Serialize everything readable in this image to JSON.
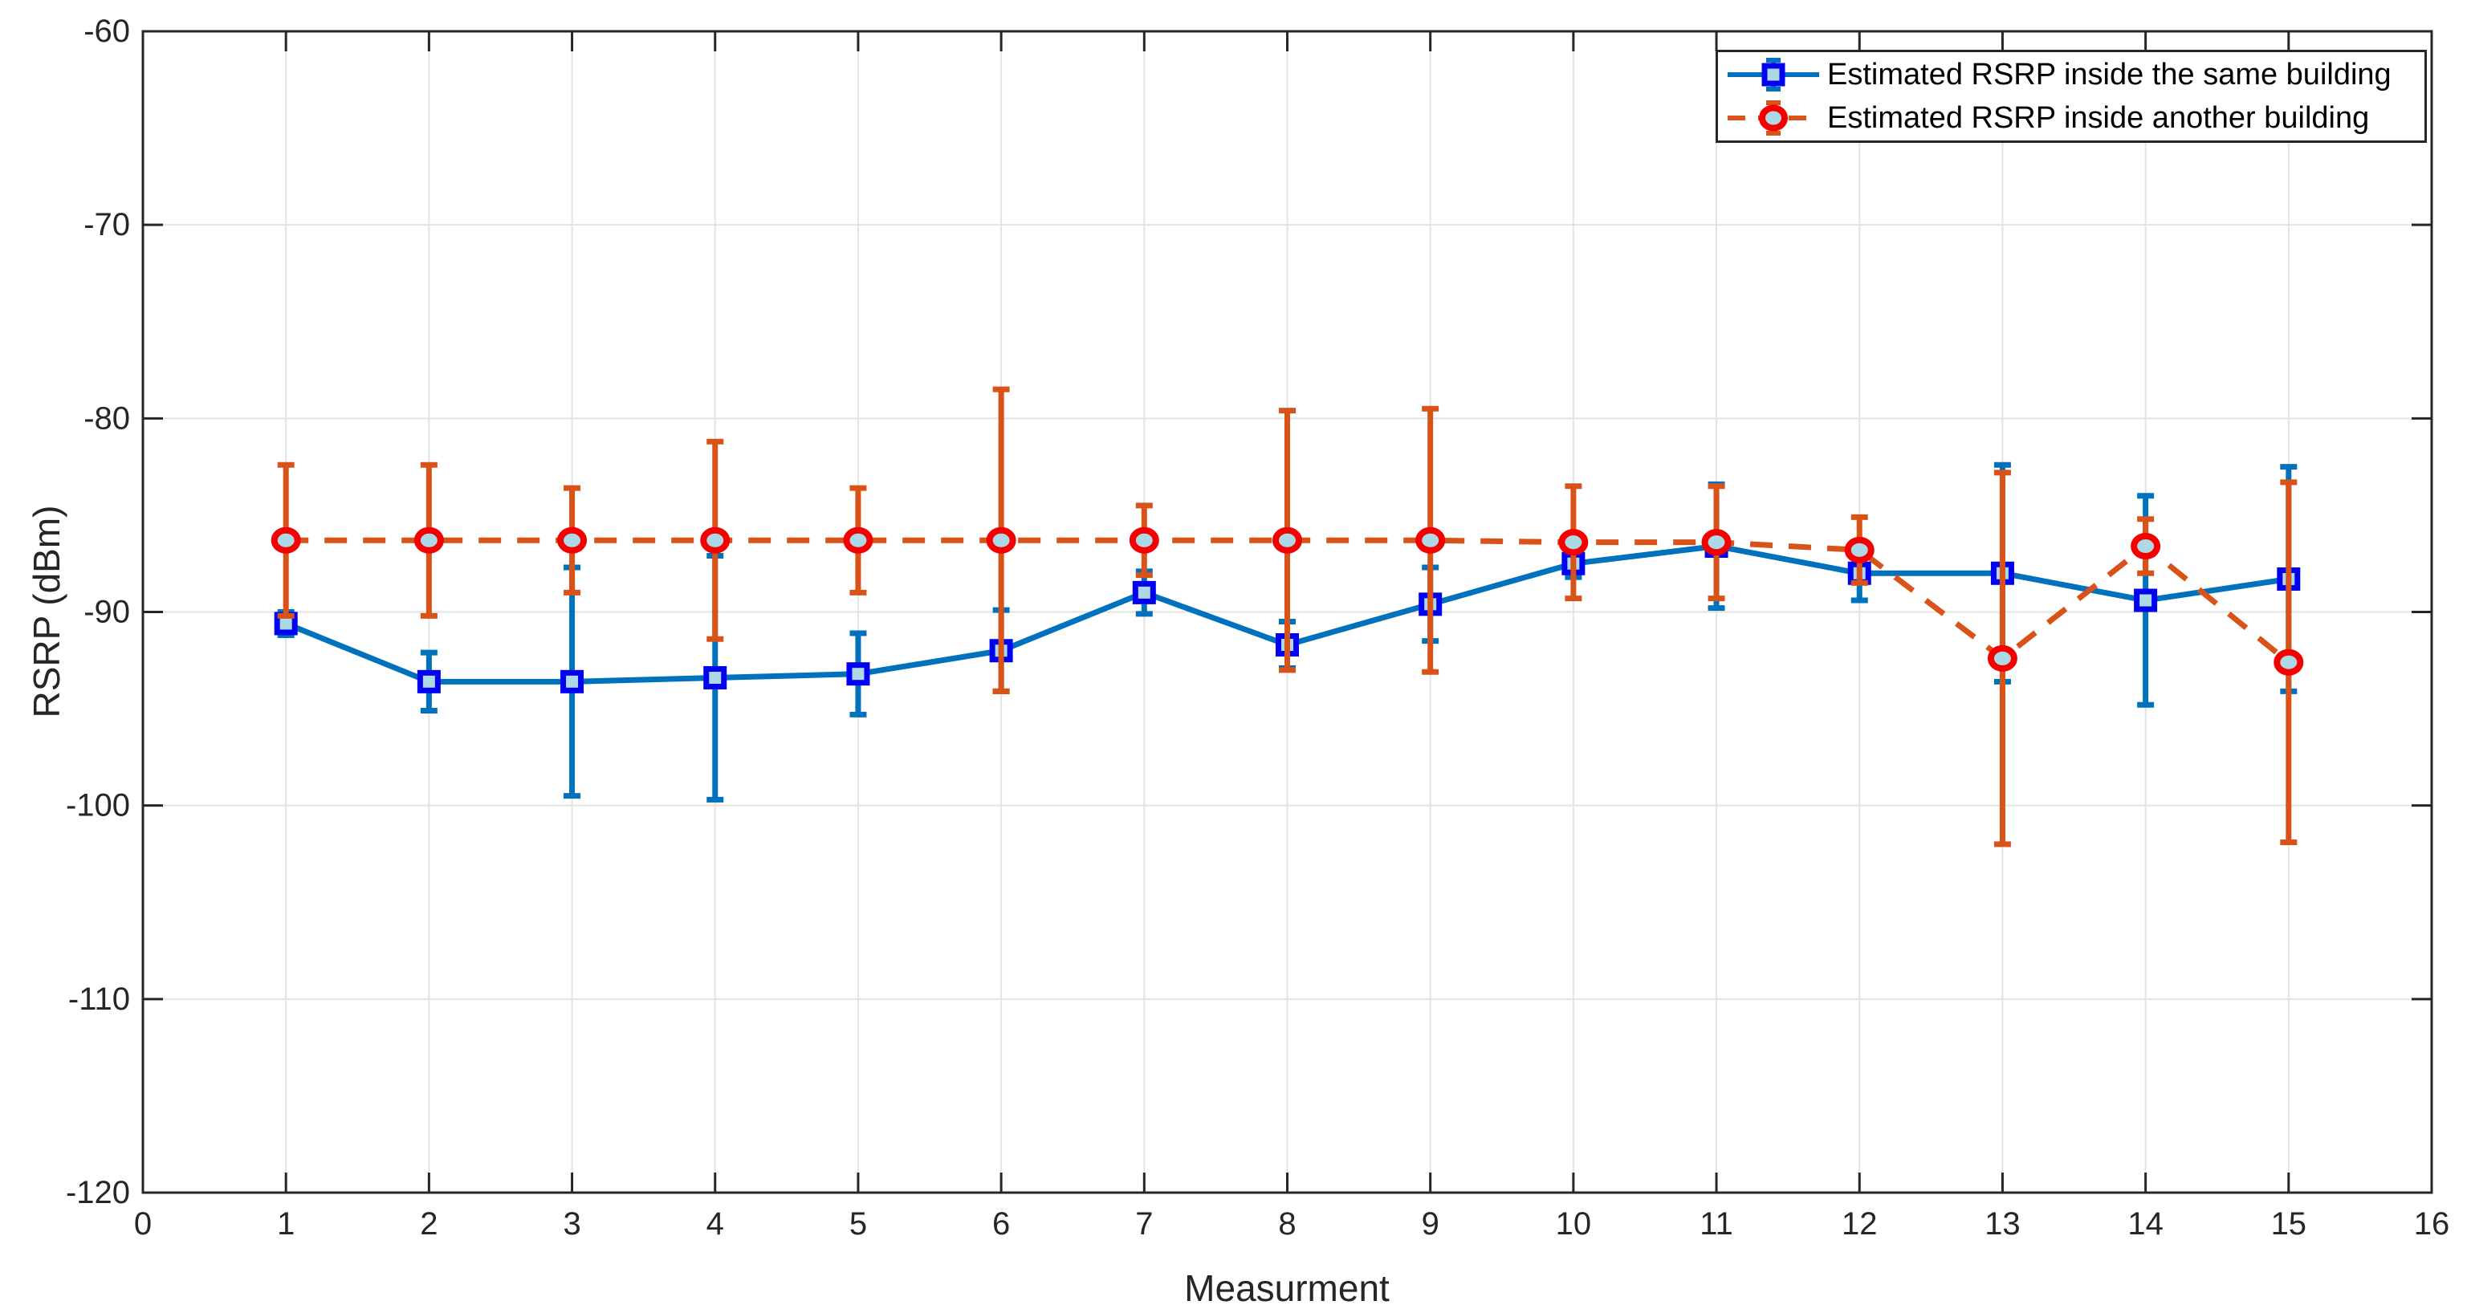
{
  "figure": {
    "background": "#ffffff",
    "axis_color": "#262626",
    "grid_color": "#e3e3e3"
  },
  "chart_data": {
    "type": "line",
    "subtype": "errorbar",
    "title": "",
    "xlabel": "Measurment",
    "ylabel": "RSRP (dBm)",
    "xlim": [
      0,
      16
    ],
    "ylim": [
      -120,
      -60
    ],
    "xticks": [
      0,
      1,
      2,
      3,
      4,
      5,
      6,
      7,
      8,
      9,
      10,
      11,
      12,
      13,
      14,
      15,
      16
    ],
    "yticks": [
      -120,
      -110,
      -100,
      -90,
      -80,
      -70,
      -60
    ],
    "grid": true,
    "legend_position": "top-right",
    "x": [
      1,
      2,
      3,
      4,
      5,
      6,
      7,
      8,
      9,
      10,
      11,
      12,
      13,
      14,
      15
    ],
    "series": [
      {
        "name": "Estimated RSRP inside the same building",
        "color": "#0072BD",
        "line_style": "solid",
        "marker": "square",
        "marker_edge": "#0000F2",
        "marker_face": "#ADD8E6",
        "values": [
          -90.6,
          -93.6,
          -93.6,
          -93.4,
          -93.2,
          -92.0,
          -89.0,
          -91.7,
          -89.6,
          -87.5,
          -86.6,
          -88.0,
          -88.0,
          -89.4,
          -88.3
        ],
        "errors": [
          0.6,
          1.5,
          5.9,
          6.3,
          2.1,
          2.1,
          1.1,
          1.2,
          1.9,
          0.7,
          3.2,
          1.4,
          5.6,
          5.4,
          5.8
        ]
      },
      {
        "name": "Estimated RSRP inside another building",
        "color": "#D95319",
        "line_style": "dashed",
        "marker": "circle",
        "marker_edge": "#F40000",
        "marker_face": "#ADD8E6",
        "values": [
          -86.3,
          -86.3,
          -86.3,
          -86.3,
          -86.3,
          -86.3,
          -86.3,
          -86.3,
          -86.3,
          -86.4,
          -86.4,
          -86.8,
          -92.4,
          -86.6,
          -92.6
        ],
        "errors": [
          3.9,
          3.9,
          2.7,
          5.1,
          2.7,
          7.8,
          1.8,
          6.7,
          6.8,
          2.9,
          2.9,
          1.7,
          9.6,
          1.4,
          9.3
        ]
      }
    ]
  },
  "legend": {
    "items": [
      {
        "label": "Estimated RSRP inside the same building"
      },
      {
        "label": "Estimated RSRP inside another building"
      }
    ]
  }
}
